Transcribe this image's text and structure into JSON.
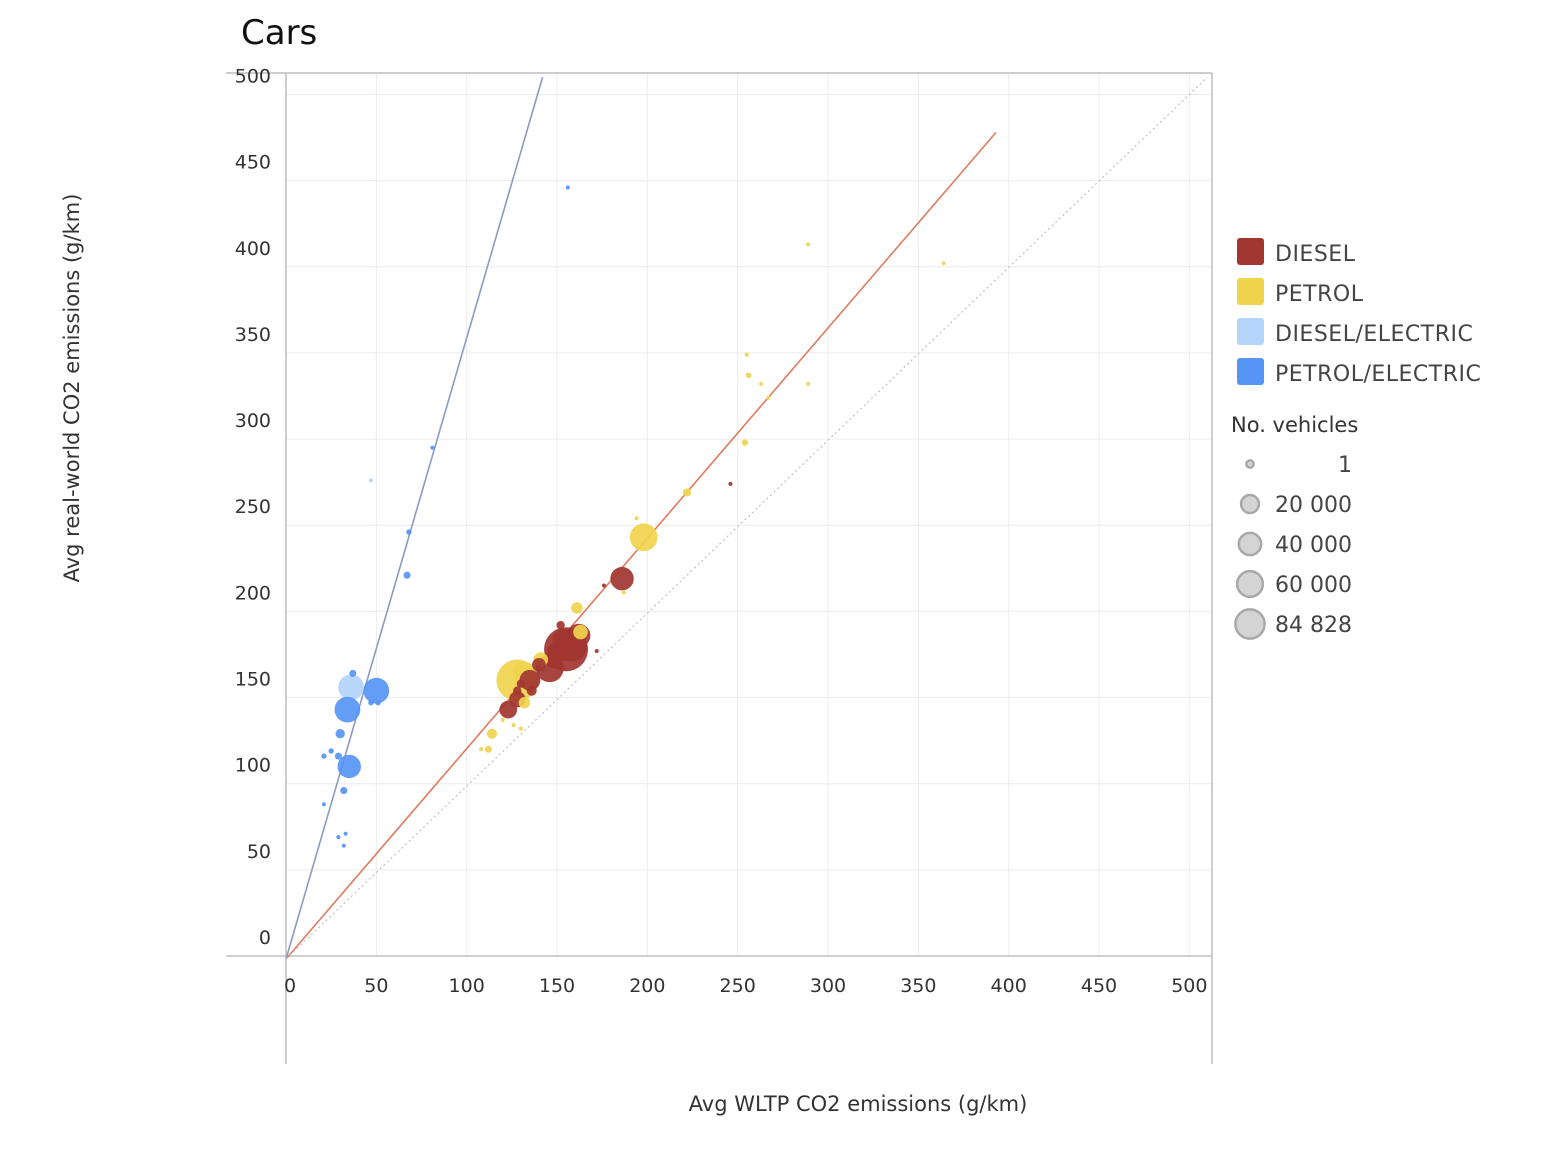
{
  "chart_data": {
    "type": "scatter",
    "title": "Cars",
    "xlabel": "Avg WLTP CO2 emissions (g/km)",
    "ylabel": "Avg real-world CO2 emissions (g/km)",
    "xlim": [
      0,
      510
    ],
    "ylim": [
      0,
      510
    ],
    "xticks": [
      0,
      50,
      100,
      150,
      200,
      250,
      300,
      350,
      400,
      450,
      500
    ],
    "yticks": [
      0,
      50,
      100,
      150,
      200,
      250,
      300,
      350,
      400,
      450,
      500
    ],
    "grid": true,
    "legend_position": "right",
    "size_legend": {
      "title": "No. vehicles",
      "entries": [
        {
          "label": "1",
          "value": 1
        },
        {
          "label": "20 000",
          "value": 20000
        },
        {
          "label": "40 000",
          "value": 40000
        },
        {
          "label": "60 000",
          "value": 60000
        },
        {
          "label": "84 828",
          "value": 84828
        }
      ]
    },
    "reference_lines": [
      {
        "name": "",
        "color": "#8a9bc4",
        "from": [
          0,
          0
        ],
        "to": [
          142,
          510
        ]
      },
      {
        "name": "",
        "color": "#e07a5f",
        "from": [
          0,
          0
        ],
        "to": [
          393,
          478
        ]
      },
      {
        "name": "",
        "color": "#c0c0c0",
        "dashed": true,
        "from": [
          0,
          0
        ],
        "to": [
          510,
          510
        ]
      }
    ],
    "series": [
      {
        "name": "DIESEL",
        "color": "#a23530",
        "points": [
          {
            "x": 246,
            "y": 274,
            "n": 1
          },
          {
            "x": 186,
            "y": 219,
            "n": 20000
          },
          {
            "x": 176,
            "y": 215,
            "n": 1
          },
          {
            "x": 172,
            "y": 177,
            "n": 1
          },
          {
            "x": 162,
            "y": 186,
            "n": 20000
          },
          {
            "x": 158,
            "y": 180,
            "n": 40000
          },
          {
            "x": 154,
            "y": 183,
            "n": 20000
          },
          {
            "x": 155,
            "y": 178,
            "n": 84828
          },
          {
            "x": 152,
            "y": 192,
            "n": 1000
          },
          {
            "x": 150,
            "y": 176,
            "n": 15000
          },
          {
            "x": 148,
            "y": 172,
            "n": 10000
          },
          {
            "x": 146,
            "y": 167,
            "n": 30000
          },
          {
            "x": 140,
            "y": 169,
            "n": 5000
          },
          {
            "x": 135,
            "y": 160,
            "n": 15000
          },
          {
            "x": 128,
            "y": 149,
            "n": 8000
          },
          {
            "x": 123,
            "y": 143,
            "n": 10000
          },
          {
            "x": 130,
            "y": 158,
            "n": 1000
          },
          {
            "x": 128,
            "y": 154,
            "n": 1000
          },
          {
            "x": 136,
            "y": 154,
            "n": 2000
          }
        ]
      },
      {
        "name": "PETROL",
        "color": "#f0d44e",
        "points": [
          {
            "x": 289,
            "y": 413,
            "n": 1
          },
          {
            "x": 364,
            "y": 402,
            "n": 1
          },
          {
            "x": 255,
            "y": 349,
            "n": 1
          },
          {
            "x": 256,
            "y": 337,
            "n": 100
          },
          {
            "x": 263,
            "y": 332,
            "n": 1
          },
          {
            "x": 289,
            "y": 332,
            "n": 1
          },
          {
            "x": 267,
            "y": 324,
            "n": 1
          },
          {
            "x": 254,
            "y": 298,
            "n": 300
          },
          {
            "x": 222,
            "y": 269,
            "n": 1000
          },
          {
            "x": 194,
            "y": 254,
            "n": 1
          },
          {
            "x": 198,
            "y": 243,
            "n": 30000
          },
          {
            "x": 187,
            "y": 211,
            "n": 1
          },
          {
            "x": 161,
            "y": 202,
            "n": 3000
          },
          {
            "x": 163,
            "y": 188,
            "n": 6000
          },
          {
            "x": 141,
            "y": 172,
            "n": 6000
          },
          {
            "x": 132,
            "y": 164,
            "n": 20000
          },
          {
            "x": 128,
            "y": 160,
            "n": 75000
          },
          {
            "x": 132,
            "y": 147,
            "n": 3000
          },
          {
            "x": 126,
            "y": 134,
            "n": 1
          },
          {
            "x": 130,
            "y": 132,
            "n": 1
          },
          {
            "x": 114,
            "y": 129,
            "n": 2000
          },
          {
            "x": 112,
            "y": 120,
            "n": 500
          },
          {
            "x": 108,
            "y": 120,
            "n": 1
          },
          {
            "x": 120,
            "y": 137,
            "n": 1
          }
        ]
      },
      {
        "name": "DIESEL/ELECTRIC",
        "color": "#b3d4fb",
        "points": [
          {
            "x": 47,
            "y": 276,
            "n": 1
          },
          {
            "x": 36,
            "y": 156,
            "n": 25000
          }
        ]
      },
      {
        "name": "PETROL/ELECTRIC",
        "color": "#5795f5",
        "points": [
          {
            "x": 156,
            "y": 446,
            "n": 1
          },
          {
            "x": 81,
            "y": 295,
            "n": 1
          },
          {
            "x": 68,
            "y": 246,
            "n": 100
          },
          {
            "x": 67,
            "y": 221,
            "n": 500
          },
          {
            "x": 37,
            "y": 164,
            "n": 500
          },
          {
            "x": 50,
            "y": 154,
            "n": 25000
          },
          {
            "x": 47,
            "y": 147,
            "n": 100
          },
          {
            "x": 51,
            "y": 147,
            "n": 100
          },
          {
            "x": 34,
            "y": 143,
            "n": 25000
          },
          {
            "x": 30,
            "y": 129,
            "n": 1500
          },
          {
            "x": 35,
            "y": 110,
            "n": 20000
          },
          {
            "x": 29,
            "y": 116,
            "n": 500
          },
          {
            "x": 25,
            "y": 119,
            "n": 100
          },
          {
            "x": 21,
            "y": 116,
            "n": 100
          },
          {
            "x": 32,
            "y": 96,
            "n": 500
          },
          {
            "x": 21,
            "y": 88,
            "n": 1
          },
          {
            "x": 29,
            "y": 69,
            "n": 1
          },
          {
            "x": 33,
            "y": 71,
            "n": 1
          },
          {
            "x": 32,
            "y": 64,
            "n": 1
          }
        ]
      }
    ]
  }
}
